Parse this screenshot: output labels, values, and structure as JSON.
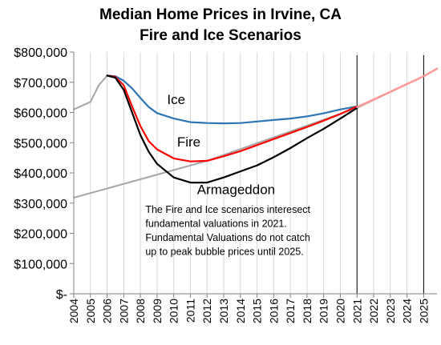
{
  "chart_data": {
    "type": "line",
    "title": [
      "Median Home Prices in Irvine, CA",
      "Fire and Ice Scenarios"
    ],
    "xlabel": "",
    "ylabel": "",
    "xlim": [
      2004,
      2025.8
    ],
    "ylim": [
      0,
      800000
    ],
    "grid": "vertical",
    "x_ticks": [
      "2004",
      "2005",
      "2006",
      "2007",
      "2008",
      "2009",
      "2010",
      "2011",
      "2012",
      "2013",
      "2014",
      "2015",
      "2016",
      "2017",
      "2018",
      "2019",
      "2020",
      "2021",
      "2022",
      "2023",
      "2024",
      "2025"
    ],
    "y_ticks": [
      {
        "value": 0,
        "label": "$-"
      },
      {
        "value": 100000,
        "label": "$100,000"
      },
      {
        "value": 200000,
        "label": "$200,000"
      },
      {
        "value": 300000,
        "label": "$300,000"
      },
      {
        "value": 400000,
        "label": "$400,000"
      },
      {
        "value": 500000,
        "label": "$500,000"
      },
      {
        "value": 600000,
        "label": "$600,000"
      },
      {
        "value": 700000,
        "label": "$700,000"
      },
      {
        "value": 800000,
        "label": "$800,000"
      }
    ],
    "series": [
      {
        "key": "fundamental",
        "name": "",
        "color": "#a6a6a6",
        "points": [
          [
            2004,
            318000
          ],
          [
            2012,
            440000
          ],
          [
            2021,
            615000
          ],
          [
            2025,
            720000
          ],
          [
            2025.8,
            745000
          ]
        ]
      },
      {
        "key": "actual",
        "name": "",
        "color": "#a6a6a6",
        "points": [
          [
            2004,
            610000
          ],
          [
            2004.6,
            625000
          ],
          [
            2005,
            635000
          ],
          [
            2005.5,
            690000
          ],
          [
            2006,
            722000
          ]
        ]
      },
      {
        "key": "ice",
        "name": "Ice",
        "color": "#2e75b6",
        "points": [
          [
            2006,
            722000
          ],
          [
            2006.5,
            720000
          ],
          [
            2007,
            705000
          ],
          [
            2007.5,
            680000
          ],
          [
            2008,
            648000
          ],
          [
            2008.5,
            618000
          ],
          [
            2009,
            598000
          ],
          [
            2010,
            580000
          ],
          [
            2011,
            568000
          ],
          [
            2012,
            565000
          ],
          [
            2013,
            564000
          ],
          [
            2014,
            565000
          ],
          [
            2015,
            570000
          ],
          [
            2016,
            575000
          ],
          [
            2017,
            580000
          ],
          [
            2018,
            587000
          ],
          [
            2019,
            597000
          ],
          [
            2020,
            610000
          ],
          [
            2021,
            620000
          ]
        ]
      },
      {
        "key": "fire",
        "name": "Fire",
        "color": "#ff0000",
        "points": [
          [
            2006,
            722000
          ],
          [
            2006.5,
            718000
          ],
          [
            2007,
            690000
          ],
          [
            2007.5,
            620000
          ],
          [
            2008,
            555000
          ],
          [
            2008.5,
            505000
          ],
          [
            2009,
            478000
          ],
          [
            2010,
            448000
          ],
          [
            2011,
            438000
          ],
          [
            2012,
            440000
          ],
          [
            2013,
            455000
          ],
          [
            2014,
            472000
          ],
          [
            2015,
            492000
          ],
          [
            2016,
            512000
          ],
          [
            2017,
            532000
          ],
          [
            2018,
            552000
          ],
          [
            2019,
            573000
          ],
          [
            2020,
            595000
          ],
          [
            2021,
            620000
          ]
        ]
      },
      {
        "key": "armageddon",
        "name": "Armageddon",
        "color": "#000000",
        "points": [
          [
            2006,
            722000
          ],
          [
            2006.5,
            715000
          ],
          [
            2007,
            675000
          ],
          [
            2007.5,
            600000
          ],
          [
            2008,
            525000
          ],
          [
            2008.5,
            470000
          ],
          [
            2009,
            430000
          ],
          [
            2010,
            385000
          ],
          [
            2011,
            368000
          ],
          [
            2012,
            368000
          ],
          [
            2013,
            385000
          ],
          [
            2014,
            405000
          ],
          [
            2015,
            425000
          ],
          [
            2016,
            452000
          ],
          [
            2017,
            482000
          ],
          [
            2018,
            515000
          ],
          [
            2019,
            546000
          ],
          [
            2020,
            580000
          ],
          [
            2021,
            615000
          ]
        ]
      },
      {
        "key": "combined",
        "name": "",
        "color": "#ff9999",
        "points": [
          [
            2021,
            618000
          ],
          [
            2022,
            643000
          ],
          [
            2023,
            668000
          ],
          [
            2024,
            694000
          ],
          [
            2025,
            720000
          ],
          [
            2025.8,
            745000
          ]
        ]
      }
    ],
    "series_labels": [
      {
        "series": "ice",
        "text": "Ice",
        "at": [
          2009.6,
          628000
        ]
      },
      {
        "series": "fire",
        "text": "Fire",
        "at": [
          2010.2,
          488000
        ]
      },
      {
        "series": "armageddon",
        "text": "Armageddon",
        "at": [
          2011.4,
          330000
        ]
      }
    ],
    "reference_lines": [
      2021,
      2025
    ],
    "annotation": {
      "lines": [
        "The Fire and Ice scenarios interesect",
        "fundamental valuations in 2021.",
        "Fundamental Valuations do not catch",
        "up to peak bubble prices until 2025."
      ],
      "at": [
        2008.3,
        268000
      ]
    }
  }
}
